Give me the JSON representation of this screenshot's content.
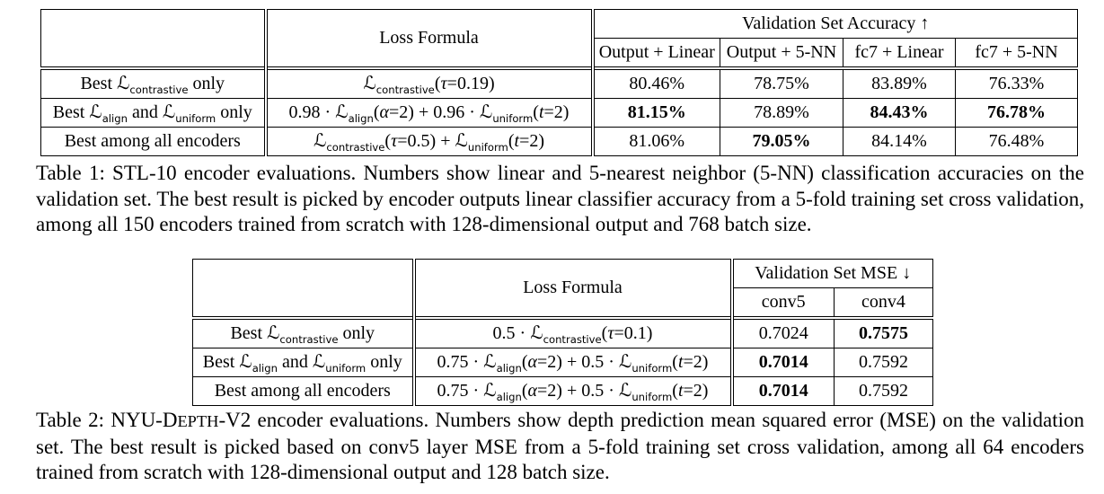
{
  "table1": {
    "header": {
      "loss_formula": "Loss Formula",
      "group": "Validation Set Accuracy",
      "group_arrow": "↑",
      "columns": [
        "Output + Linear",
        "Output + 5-NN",
        "fc7 + Linear",
        "fc7 + 5-NN"
      ]
    },
    "rows": [
      {
        "label": "Best ℒ_{contrastive} only",
        "formula": "ℒ_{contrastive}(*τ*=0.19)",
        "cells": [
          {
            "text": "80.46%",
            "bold": false
          },
          {
            "text": "78.75%",
            "bold": false
          },
          {
            "text": "83.89%",
            "bold": false
          },
          {
            "text": "76.33%",
            "bold": false
          }
        ]
      },
      {
        "label": "Best ℒ_{align} and ℒ_{uniform} only",
        "formula": "0.98 · ℒ_{align}(*α*=2) + 0.96 · ℒ_{uniform}(*t*=2)",
        "cells": [
          {
            "text": "81.15%",
            "bold": true
          },
          {
            "text": "78.89%",
            "bold": false
          },
          {
            "text": "84.43%",
            "bold": true
          },
          {
            "text": "76.78%",
            "bold": true
          }
        ]
      },
      {
        "label": "Best among all encoders",
        "formula": "ℒ_{contrastive}(*τ*=0.5) + ℒ_{uniform}(*t*=2)",
        "cells": [
          {
            "text": "81.06%",
            "bold": false
          },
          {
            "text": "79.05%",
            "bold": true
          },
          {
            "text": "84.14%",
            "bold": false
          },
          {
            "text": "76.48%",
            "bold": false
          }
        ]
      }
    ],
    "caption": "Table 1: STL-10 encoder evaluations. Numbers show linear and 5-nearest neighbor (5-NN) classification accuracies on the validation set. The best result is picked by encoder outputs linear classifier accuracy from a 5-fold training set cross validation, among all 150 encoders trained from scratch with 128-dimensional output and 768 batch size."
  },
  "table2": {
    "header": {
      "loss_formula": "Loss Formula",
      "group": "Validation Set MSE",
      "group_arrow": "↓",
      "columns": [
        "conv5",
        "conv4"
      ]
    },
    "rows": [
      {
        "label": "Best ℒ_{contrastive} only",
        "formula": "0.5 · ℒ_{contrastive}(*τ*=0.1)",
        "cells": [
          {
            "text": "0.7024",
            "bold": false
          },
          {
            "text": "0.7575",
            "bold": true
          }
        ]
      },
      {
        "label": "Best ℒ_{align} and ℒ_{uniform} only",
        "formula": "0.75 · ℒ_{align}(*α*=2) + 0.5 · ℒ_{uniform}(*t*=2)",
        "cells": [
          {
            "text": "0.7014",
            "bold": true
          },
          {
            "text": "0.7592",
            "bold": false
          }
        ]
      },
      {
        "label": "Best among all encoders",
        "formula": "0.75 · ℒ_{align}(*α*=2) + 0.5 · ℒ_{uniform}(*t*=2)",
        "cells": [
          {
            "text": "0.7014",
            "bold": true
          },
          {
            "text": "0.7592",
            "bold": false
          }
        ]
      }
    ],
    "caption": "Table 2: NYU-D~EPTH~-V2 encoder evaluations. Numbers show depth prediction mean squared error (MSE) on the validation set. The best result is picked based on conv5 layer MSE from a 5-fold training set cross validation, among all 64 encoders trained from scratch with 128-dimensional output and 128 batch size."
  }
}
